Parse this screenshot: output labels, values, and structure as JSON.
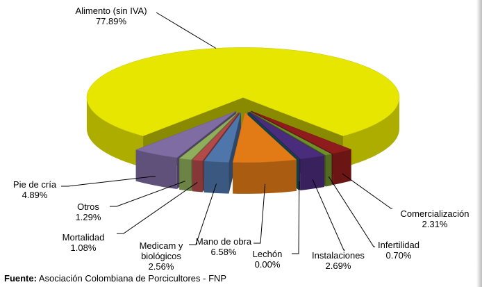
{
  "chart_data": {
    "type": "pie",
    "categories": [
      "Alimento (sin IVA)",
      "Comercialización",
      "Infertilidad",
      "Instalaciones",
      "Lechón",
      "Mano de obra",
      "Medicam y biológicos",
      "Mortalidad",
      "Otros",
      "Pie de cría"
    ],
    "values": [
      77.89,
      2.31,
      0.7,
      2.69,
      0.0,
      6.58,
      2.56,
      1.08,
      1.29,
      4.89
    ],
    "value_labels": [
      "77.89%",
      "2.31%",
      "0.70%",
      "2.69%",
      "0.00%",
      "6.58%",
      "2.56%",
      "1.08%",
      "1.29%",
      "4.89%"
    ],
    "colors": [
      "#e6e600",
      "#8e1c1c",
      "#6f8f2a",
      "#4a2c7c",
      "#1d6770",
      "#e27a16",
      "#4f76aa",
      "#b24a4a",
      "#8fae5b",
      "#7f6ca2"
    ],
    "source_label": "Fuente:",
    "source": "Asociación Colombiana de Porcicultores - FNP"
  }
}
